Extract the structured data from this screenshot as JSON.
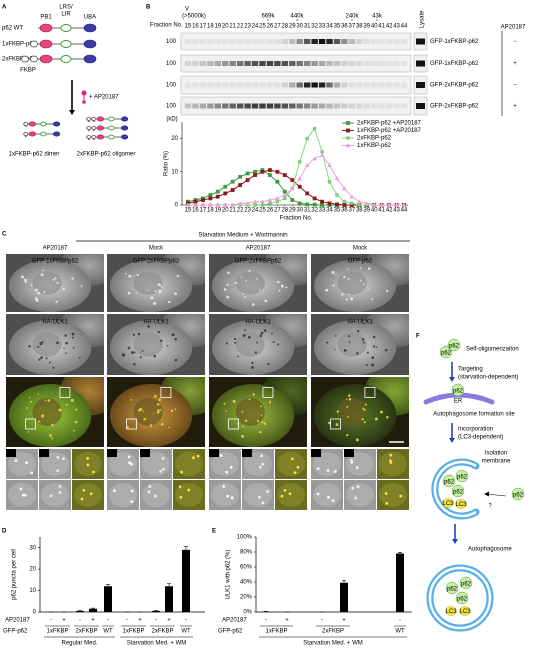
{
  "letters": [
    "A",
    "B",
    "C",
    "D",
    "E",
    "F"
  ],
  "panel_a": {
    "constructs": [
      "p62 WT",
      "1xFKBP-p62",
      "2xFKBP-p62"
    ],
    "domains": {
      "pb1": "PB1",
      "lrs": "LRS/",
      "lir": "LIR",
      "uba": "UBA",
      "fkbp": "FKBP"
    },
    "treatment": "+ AP20187",
    "products": [
      "1xFKBP-p62 dimer",
      "2xFKBP-p62 oligomer"
    ]
  },
  "panel_b": {
    "fraction_label": "Fraction No.",
    "void": "V",
    "void_size": "(>5000k)",
    "markers": [
      "669k",
      "440k",
      "240k",
      "43k"
    ],
    "lysate": "Lysate",
    "treatment": "AP20187",
    "blots": [
      {
        "label": "GFP-1xFKBP-p62",
        "sign": "−"
      },
      {
        "label": "GFP-1xFKBP-p62",
        "sign": "+"
      },
      {
        "label": "GFP-2xFKBP-p62",
        "sign": "−"
      },
      {
        "label": "GFP-2xFKBP-p62",
        "sign": "+"
      }
    ],
    "mw": "100",
    "mw_unit": "(kD)"
  },
  "panel_c": {
    "title": "Starvation Medium + Wortmannin",
    "columns": [
      "AP20187",
      "Mock",
      "AP20187",
      "Mock"
    ],
    "green_channels": [
      "GFP-1xFKBPp62",
      "GFP-2xFKBPp62",
      "GFP-2xFKBPp62",
      "GFP-p62"
    ],
    "red_channel": "HA-ULK1",
    "inset_labels": [
      "62",
      "U"
    ]
  },
  "panel_f": {
    "self": "Self-oligomerizaiton",
    "targeting": [
      "Targeting",
      "(starvation-dependent)"
    ],
    "site": "Autophagosome formation site",
    "incorporation": [
      "Incorporation",
      "(LC3-dependent)"
    ],
    "isolation": [
      "Isolation",
      "membrane"
    ],
    "question": "?",
    "autophagosome": "Autophagosome",
    "p62": "p62",
    "lc3": "LC3",
    "er": "ER"
  },
  "chart_data": [
    {
      "type": "line",
      "xlabel": "Fraction No.",
      "ylabel": "Ratio (%)",
      "x": [
        15,
        16,
        17,
        18,
        19,
        20,
        21,
        22,
        23,
        24,
        25,
        26,
        27,
        28,
        29,
        30,
        31,
        32,
        33,
        34,
        35,
        36,
        37,
        38,
        39,
        40,
        41,
        42,
        43,
        44
      ],
      "xlim": [
        15,
        44
      ],
      "ylim": [
        0,
        25
      ],
      "yticks": [
        0,
        10,
        20
      ],
      "legend": "upper right",
      "series": [
        {
          "name": "2xFKBP-p62 +AP20187",
          "color": "#3c9a3c",
          "marker": "square",
          "values": [
            1,
            1.5,
            2,
            3,
            4,
            5.5,
            7,
            8.5,
            9.5,
            10,
            10.5,
            9,
            7,
            4,
            1.5,
            0.5,
            0.2,
            0.1,
            0,
            0,
            0,
            0,
            0,
            0,
            0,
            0,
            0,
            0,
            0,
            0
          ]
        },
        {
          "name": "1xFKBP-p62 +AP20187",
          "color": "#8b1a1a",
          "marker": "square",
          "values": [
            0.5,
            1,
            1.5,
            2,
            2.5,
            3.5,
            4.5,
            6,
            7.5,
            9,
            10,
            10.5,
            10,
            9,
            7.5,
            5.5,
            3.5,
            2,
            1,
            0.5,
            0.2,
            0,
            0,
            0,
            0,
            0,
            0,
            0,
            0,
            0
          ]
        },
        {
          "name": "2xFKBP-p62",
          "color": "#7ce07c",
          "marker": "circle",
          "values": [
            0,
            0,
            0,
            0,
            0,
            0,
            0,
            0,
            0,
            0,
            0,
            0.5,
            1,
            2,
            5,
            13,
            20,
            23,
            16,
            7,
            3,
            1,
            0.5,
            0,
            0,
            0,
            0,
            0,
            0,
            0
          ]
        },
        {
          "name": "1xFKBP-p62",
          "color": "#f0a0d8",
          "marker": "triangle",
          "values": [
            0,
            0,
            0,
            0,
            0,
            0,
            0,
            0.5,
            0.5,
            1,
            1,
            1.5,
            2,
            3,
            5,
            8,
            12,
            14,
            15,
            12,
            8,
            5,
            2.5,
            1,
            0.5,
            0,
            0,
            0,
            0,
            0
          ]
        }
      ]
    },
    {
      "type": "bar",
      "ylabel": "p62 puncta per cell",
      "ylim": [
        0,
        35
      ],
      "yticks": [
        0,
        10,
        20,
        30
      ],
      "color": "#000000",
      "values": [
        0,
        0,
        0.5,
        1.5,
        12,
        0,
        0,
        0.5,
        12,
        29
      ],
      "errors": [
        0,
        0,
        0.2,
        0.3,
        0.8,
        0,
        0,
        0.2,
        1.2,
        1.5
      ],
      "row_labels": [
        "AP20187",
        "GFP-p62"
      ],
      "ap20187": [
        "-",
        "+",
        "-",
        "+",
        "-",
        "-",
        "+",
        "-",
        "+",
        "-"
      ],
      "groups": [
        "1xFKBP",
        "2xFKBP",
        "WT",
        "1xFKBP",
        "2xFKBP",
        "WT"
      ],
      "conditions": [
        "Regular Med.",
        "Starvation Med. + WM"
      ]
    },
    {
      "type": "bar",
      "ylabel": "ULK1 with p62 (%)",
      "ylim": [
        0,
        100
      ],
      "yticks": [
        {
          "value": 0,
          "label": "0%"
        },
        {
          "value": 20,
          "label": "20%"
        },
        {
          "value": 40,
          "label": "40%"
        },
        {
          "value": 60,
          "label": "60%"
        },
        {
          "value": 80,
          "label": "80%"
        },
        {
          "value": 100,
          "label": "100%"
        }
      ],
      "color": "#000000",
      "values": [
        0.5,
        0,
        0,
        39,
        78
      ],
      "errors": [
        0.3,
        0,
        0,
        3,
        1.5
      ],
      "row_labels": [
        "AP20187",
        "GFP-p62"
      ],
      "ap20187": [
        "-",
        "+",
        "-",
        "+",
        "-"
      ],
      "groups": [
        "1xFKBP",
        "2xFKBP",
        "WT"
      ],
      "conditions": [
        "Starvation Med. + WM"
      ]
    }
  ]
}
